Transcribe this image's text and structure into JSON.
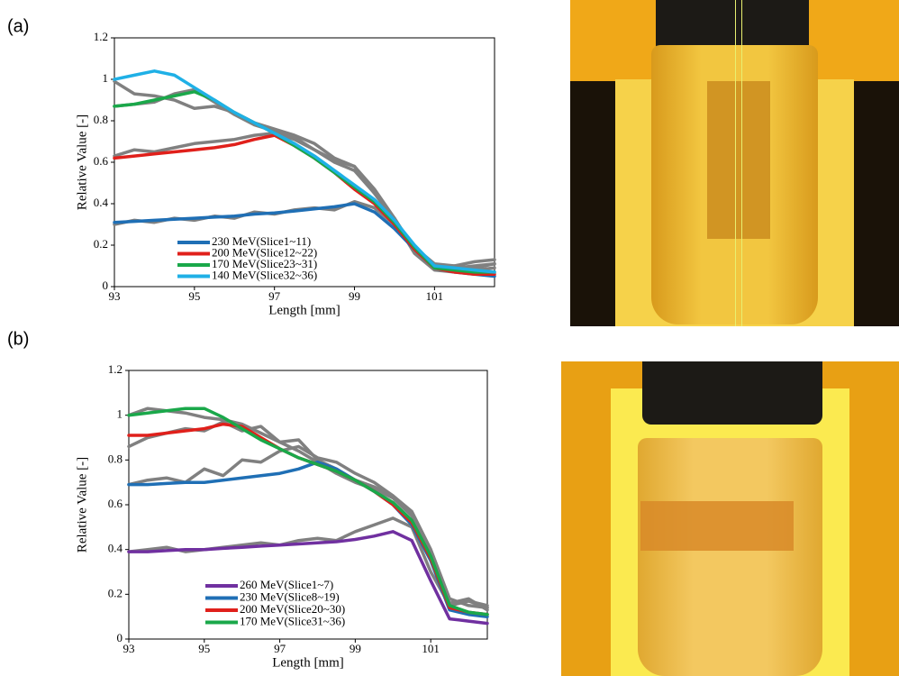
{
  "chart_data": [
    {
      "type": "line",
      "panel_label": "(a)",
      "xlabel": "Length [mm]",
      "ylabel": "Relative Value [-]",
      "x": [
        93,
        93.5,
        94,
        94.5,
        95,
        95.5,
        96,
        96.5,
        97,
        97.5,
        98,
        98.5,
        99,
        99.5,
        100,
        100.5,
        101,
        101.5,
        102,
        102.5
      ],
      "xlim": [
        93,
        102.5
      ],
      "xticks": [
        93,
        95,
        97,
        99,
        101
      ],
      "ylim": [
        0,
        1.2
      ],
      "yticks": [
        0,
        0.2,
        0.4,
        0.6,
        0.8,
        1,
        1.2
      ],
      "legend": "lower left",
      "series": [
        {
          "name": "230 MeV(Slice1~11)",
          "color": "#1f6fb5",
          "values": [
            0.31,
            0.315,
            0.32,
            0.325,
            0.33,
            0.335,
            0.34,
            0.35,
            0.355,
            0.365,
            0.375,
            0.385,
            0.4,
            0.36,
            0.28,
            0.18,
            0.09,
            0.07,
            0.06,
            0.05
          ]
        },
        {
          "name": "200 MeV(Slice12~22)",
          "color": "#e0201b",
          "values": [
            0.62,
            0.63,
            0.64,
            0.65,
            0.66,
            0.67,
            0.685,
            0.71,
            0.73,
            0.68,
            0.62,
            0.55,
            0.47,
            0.4,
            0.3,
            0.18,
            0.09,
            0.07,
            0.06,
            0.06
          ]
        },
        {
          "name": "170 MeV(Slice23~31)",
          "color": "#1aa84a",
          "values": [
            0.87,
            0.88,
            0.9,
            0.92,
            0.94,
            0.9,
            0.84,
            0.79,
            0.74,
            0.68,
            0.62,
            0.55,
            0.48,
            0.41,
            0.31,
            0.19,
            0.09,
            0.08,
            0.07,
            0.07
          ]
        },
        {
          "name": "140 MeV(Slice32~36)",
          "color": "#1fb0e6",
          "values": [
            1.0,
            1.02,
            1.04,
            1.02,
            0.96,
            0.9,
            0.84,
            0.79,
            0.74,
            0.69,
            0.63,
            0.56,
            0.49,
            0.42,
            0.32,
            0.2,
            0.1,
            0.09,
            0.08,
            0.07
          ]
        },
        {
          "color": "#808080",
          "values": [
            0.3,
            0.32,
            0.31,
            0.33,
            0.32,
            0.34,
            0.33,
            0.36,
            0.35,
            0.37,
            0.38,
            0.37,
            0.41,
            0.38,
            0.3,
            0.19,
            0.11,
            0.1,
            0.12,
            0.13
          ]
        },
        {
          "color": "#808080",
          "values": [
            0.63,
            0.66,
            0.65,
            0.67,
            0.69,
            0.7,
            0.71,
            0.73,
            0.74,
            0.71,
            0.66,
            0.61,
            0.58,
            0.47,
            0.33,
            0.18,
            0.1,
            0.09,
            0.1,
            0.11
          ]
        },
        {
          "color": "#808080",
          "values": [
            0.87,
            0.88,
            0.89,
            0.93,
            0.95,
            0.89,
            0.83,
            0.78,
            0.75,
            0.72,
            0.66,
            0.6,
            0.56,
            0.45,
            0.33,
            0.17,
            0.09,
            0.1,
            0.09,
            0.11
          ]
        },
        {
          "color": "#808080",
          "values": [
            0.99,
            0.93,
            0.92,
            0.9,
            0.86,
            0.87,
            0.84,
            0.79,
            0.76,
            0.73,
            0.69,
            0.62,
            0.58,
            0.45,
            0.32,
            0.16,
            0.08,
            0.07,
            0.08,
            0.09
          ]
        }
      ]
    },
    {
      "type": "line",
      "panel_label": "(b)",
      "xlabel": "Length [mm]",
      "ylabel": "Relative Value [-]",
      "x": [
        93,
        93.5,
        94,
        94.5,
        95,
        95.5,
        96,
        96.5,
        97,
        97.5,
        98,
        98.5,
        99,
        99.5,
        100,
        100.5,
        101,
        101.5,
        102,
        102.5
      ],
      "xlim": [
        93,
        102.5
      ],
      "xticks": [
        93,
        95,
        97,
        99,
        101
      ],
      "ylim": [
        0,
        1.2
      ],
      "yticks": [
        0,
        0.2,
        0.4,
        0.6,
        0.8,
        1,
        1.2
      ],
      "legend": "lower left",
      "series": [
        {
          "name": "260 MeV(Slice1~7)",
          "color": "#7030a0",
          "values": [
            0.39,
            0.39,
            0.395,
            0.4,
            0.4,
            0.405,
            0.41,
            0.415,
            0.42,
            0.425,
            0.43,
            0.435,
            0.445,
            0.46,
            0.48,
            0.44,
            0.26,
            0.09,
            0.08,
            0.07
          ]
        },
        {
          "name": "230 MeV(Slice8~19)",
          "color": "#1f6fb5",
          "values": [
            0.69,
            0.69,
            0.695,
            0.7,
            0.7,
            0.71,
            0.72,
            0.73,
            0.74,
            0.76,
            0.79,
            0.76,
            0.71,
            0.66,
            0.6,
            0.51,
            0.35,
            0.13,
            0.11,
            0.1
          ]
        },
        {
          "name": "200 MeV(Slice20~30)",
          "color": "#e0201b",
          "values": [
            0.91,
            0.91,
            0.92,
            0.93,
            0.94,
            0.96,
            0.95,
            0.9,
            0.85,
            0.81,
            0.78,
            0.75,
            0.71,
            0.66,
            0.6,
            0.52,
            0.36,
            0.14,
            0.12,
            0.11
          ]
        },
        {
          "name": "170 MeV(Slice31~36)",
          "color": "#1aa84a",
          "values": [
            1.0,
            1.01,
            1.02,
            1.03,
            1.03,
            0.99,
            0.94,
            0.89,
            0.85,
            0.81,
            0.78,
            0.75,
            0.71,
            0.66,
            0.61,
            0.53,
            0.37,
            0.15,
            0.12,
            0.11
          ]
        },
        {
          "color": "#808080",
          "values": [
            0.39,
            0.4,
            0.41,
            0.39,
            0.4,
            0.41,
            0.42,
            0.43,
            0.42,
            0.44,
            0.45,
            0.44,
            0.48,
            0.51,
            0.54,
            0.5,
            0.3,
            0.15,
            0.17,
            0.14
          ]
        },
        {
          "color": "#808080",
          "values": [
            0.69,
            0.71,
            0.72,
            0.7,
            0.76,
            0.73,
            0.8,
            0.79,
            0.84,
            0.86,
            0.81,
            0.79,
            0.74,
            0.7,
            0.64,
            0.57,
            0.4,
            0.18,
            0.15,
            0.14
          ]
        },
        {
          "color": "#808080",
          "values": [
            0.86,
            0.9,
            0.92,
            0.94,
            0.93,
            0.97,
            0.93,
            0.95,
            0.88,
            0.89,
            0.8,
            0.76,
            0.71,
            0.68,
            0.64,
            0.56,
            0.38,
            0.16,
            0.18,
            0.13
          ]
        },
        {
          "color": "#808080",
          "values": [
            1.0,
            1.03,
            1.02,
            1.01,
            0.99,
            0.98,
            0.96,
            0.92,
            0.88,
            0.84,
            0.79,
            0.74,
            0.7,
            0.67,
            0.63,
            0.55,
            0.37,
            0.15,
            0.17,
            0.15
          ]
        }
      ]
    }
  ]
}
